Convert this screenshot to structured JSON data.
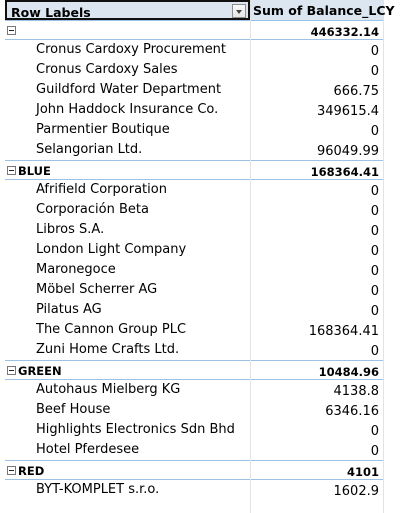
{
  "pivot": {
    "header": {
      "row_labels": "Row Labels",
      "value_header": "Sum of Balance_LCY"
    },
    "rows": [
      {
        "type": "group",
        "label": "",
        "value": "446332.14"
      },
      {
        "type": "item",
        "label": "Cronus Cardoxy Procurement",
        "value": "0"
      },
      {
        "type": "item",
        "label": "Cronus Cardoxy Sales",
        "value": "0"
      },
      {
        "type": "item",
        "label": "Guildford Water Department",
        "value": "666.75"
      },
      {
        "type": "item",
        "label": "John Haddock Insurance Co.",
        "value": "349615.4"
      },
      {
        "type": "item",
        "label": "Parmentier Boutique",
        "value": "0"
      },
      {
        "type": "item",
        "label": "Selangorian Ltd.",
        "value": "96049.99"
      },
      {
        "type": "group",
        "label": "BLUE",
        "value": "168364.41"
      },
      {
        "type": "item",
        "label": "Afrifield Corporation",
        "value": "0"
      },
      {
        "type": "item",
        "label": "Corporación Beta",
        "value": "0"
      },
      {
        "type": "item",
        "label": "Libros S.A.",
        "value": "0"
      },
      {
        "type": "item",
        "label": "London Light Company",
        "value": "0"
      },
      {
        "type": "item",
        "label": "Maronegoce",
        "value": "0"
      },
      {
        "type": "item",
        "label": "Möbel Scherrer AG",
        "value": "0"
      },
      {
        "type": "item",
        "label": "Pilatus AG",
        "value": "0"
      },
      {
        "type": "item",
        "label": "The Cannon Group PLC",
        "value": "168364.41"
      },
      {
        "type": "item",
        "label": "Zuni Home Crafts Ltd.",
        "value": "0"
      },
      {
        "type": "group",
        "label": "GREEN",
        "value": "10484.96"
      },
      {
        "type": "item",
        "label": "Autohaus Mielberg KG",
        "value": "4138.8"
      },
      {
        "type": "item",
        "label": "Beef House",
        "value": "6346.16"
      },
      {
        "type": "item",
        "label": "Highlights Electronics Sdn Bhd",
        "value": "0"
      },
      {
        "type": "item",
        "label": "Hotel Pferdesee",
        "value": "0"
      },
      {
        "type": "group",
        "label": "RED",
        "value": "4101"
      },
      {
        "type": "item",
        "label": "BYT-KOMPLET s.r.o.",
        "value": "1602.9"
      }
    ]
  },
  "icons": {
    "filter": "filter-dropdown-icon",
    "collapse": "collapse-minus-icon"
  },
  "colors": {
    "header_fill": "#dce6f1",
    "group_border": "#9bc2e6"
  }
}
